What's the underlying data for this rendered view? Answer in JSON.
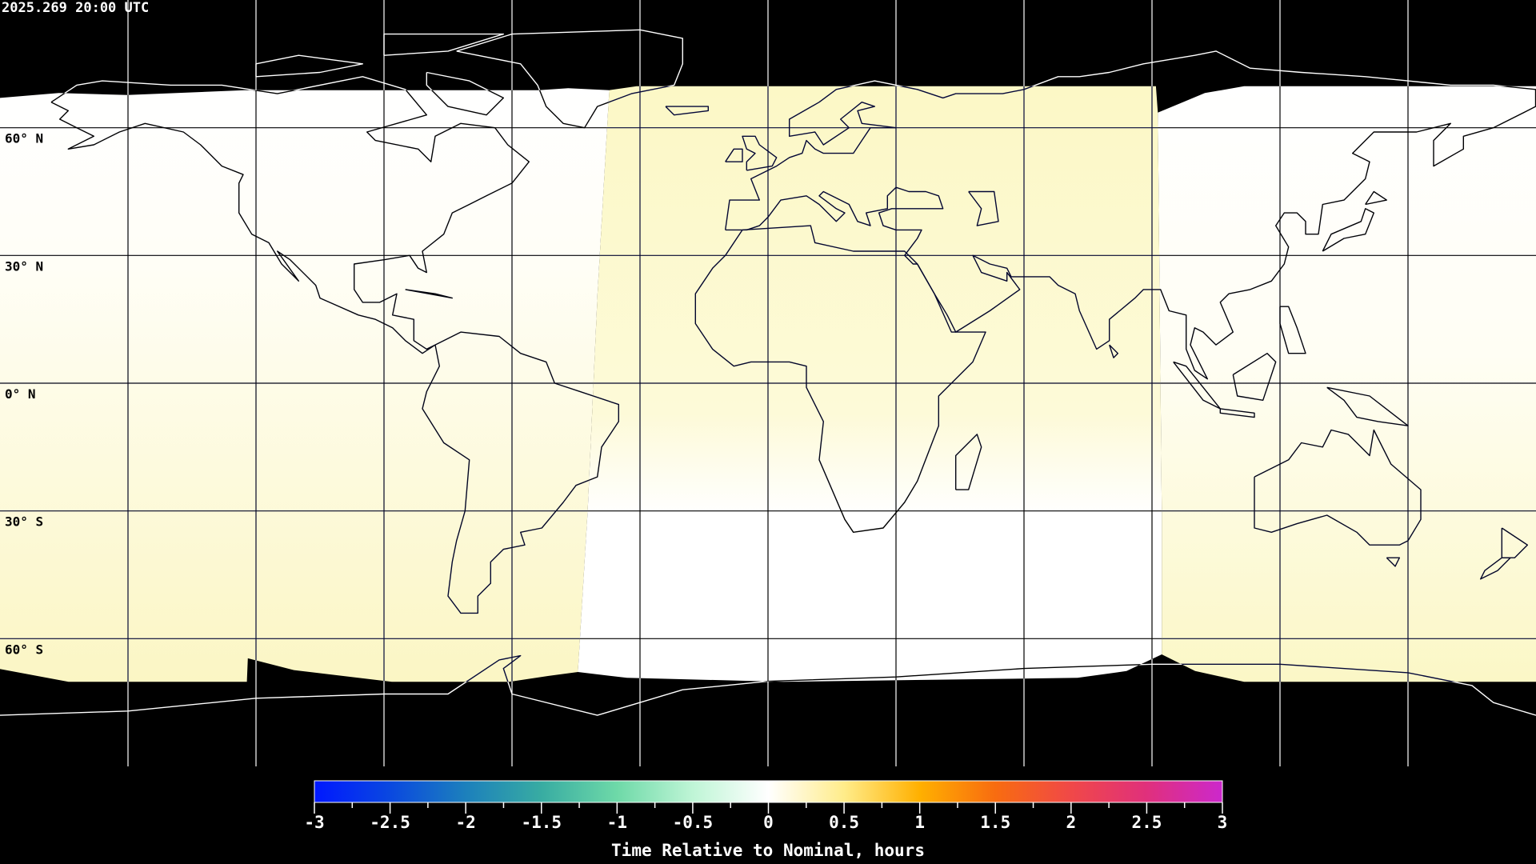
{
  "timestamp": "2025.269 20:00 UTC",
  "latitude_labels": [
    "60° N",
    "30° N",
    "0° N",
    "30° S",
    "60° S"
  ],
  "latitude_values": [
    60,
    30,
    0,
    -30,
    -60
  ],
  "longitude_grid_values": [
    -150,
    -120,
    -90,
    -60,
    -30,
    0,
    30,
    60,
    90,
    120,
    150
  ],
  "projection": "equirectangular",
  "coverage_colors": {
    "white": "#fffef6",
    "yellow": "#fcf8c8",
    "no_data": "#000000"
  },
  "colorbar": {
    "title": "Time Relative to Nominal, hours",
    "range": [
      -3,
      3
    ],
    "tick_labels": [
      "-3",
      "-2.5",
      "-2",
      "-1.5",
      "-1",
      "-0.5",
      "0",
      "0.5",
      "1",
      "1.5",
      "2",
      "2.5",
      "3"
    ],
    "stops": [
      {
        "value": -3,
        "color": "#0018ff"
      },
      {
        "value": -2.5,
        "color": "#0a48e0"
      },
      {
        "value": -2,
        "color": "#1c80bc"
      },
      {
        "value": -1.5,
        "color": "#38aca2"
      },
      {
        "value": -1,
        "color": "#6ed9a8"
      },
      {
        "value": -0.5,
        "color": "#bff5d6"
      },
      {
        "value": 0,
        "color": "#ffffff"
      },
      {
        "value": 0.5,
        "color": "#ffec8a"
      },
      {
        "value": 1,
        "color": "#ffb000"
      },
      {
        "value": 1.5,
        "color": "#f86c10"
      },
      {
        "value": 2,
        "color": "#f04848"
      },
      {
        "value": 2.5,
        "color": "#e0307c"
      },
      {
        "value": 3,
        "color": "#cc28cc"
      }
    ]
  }
}
